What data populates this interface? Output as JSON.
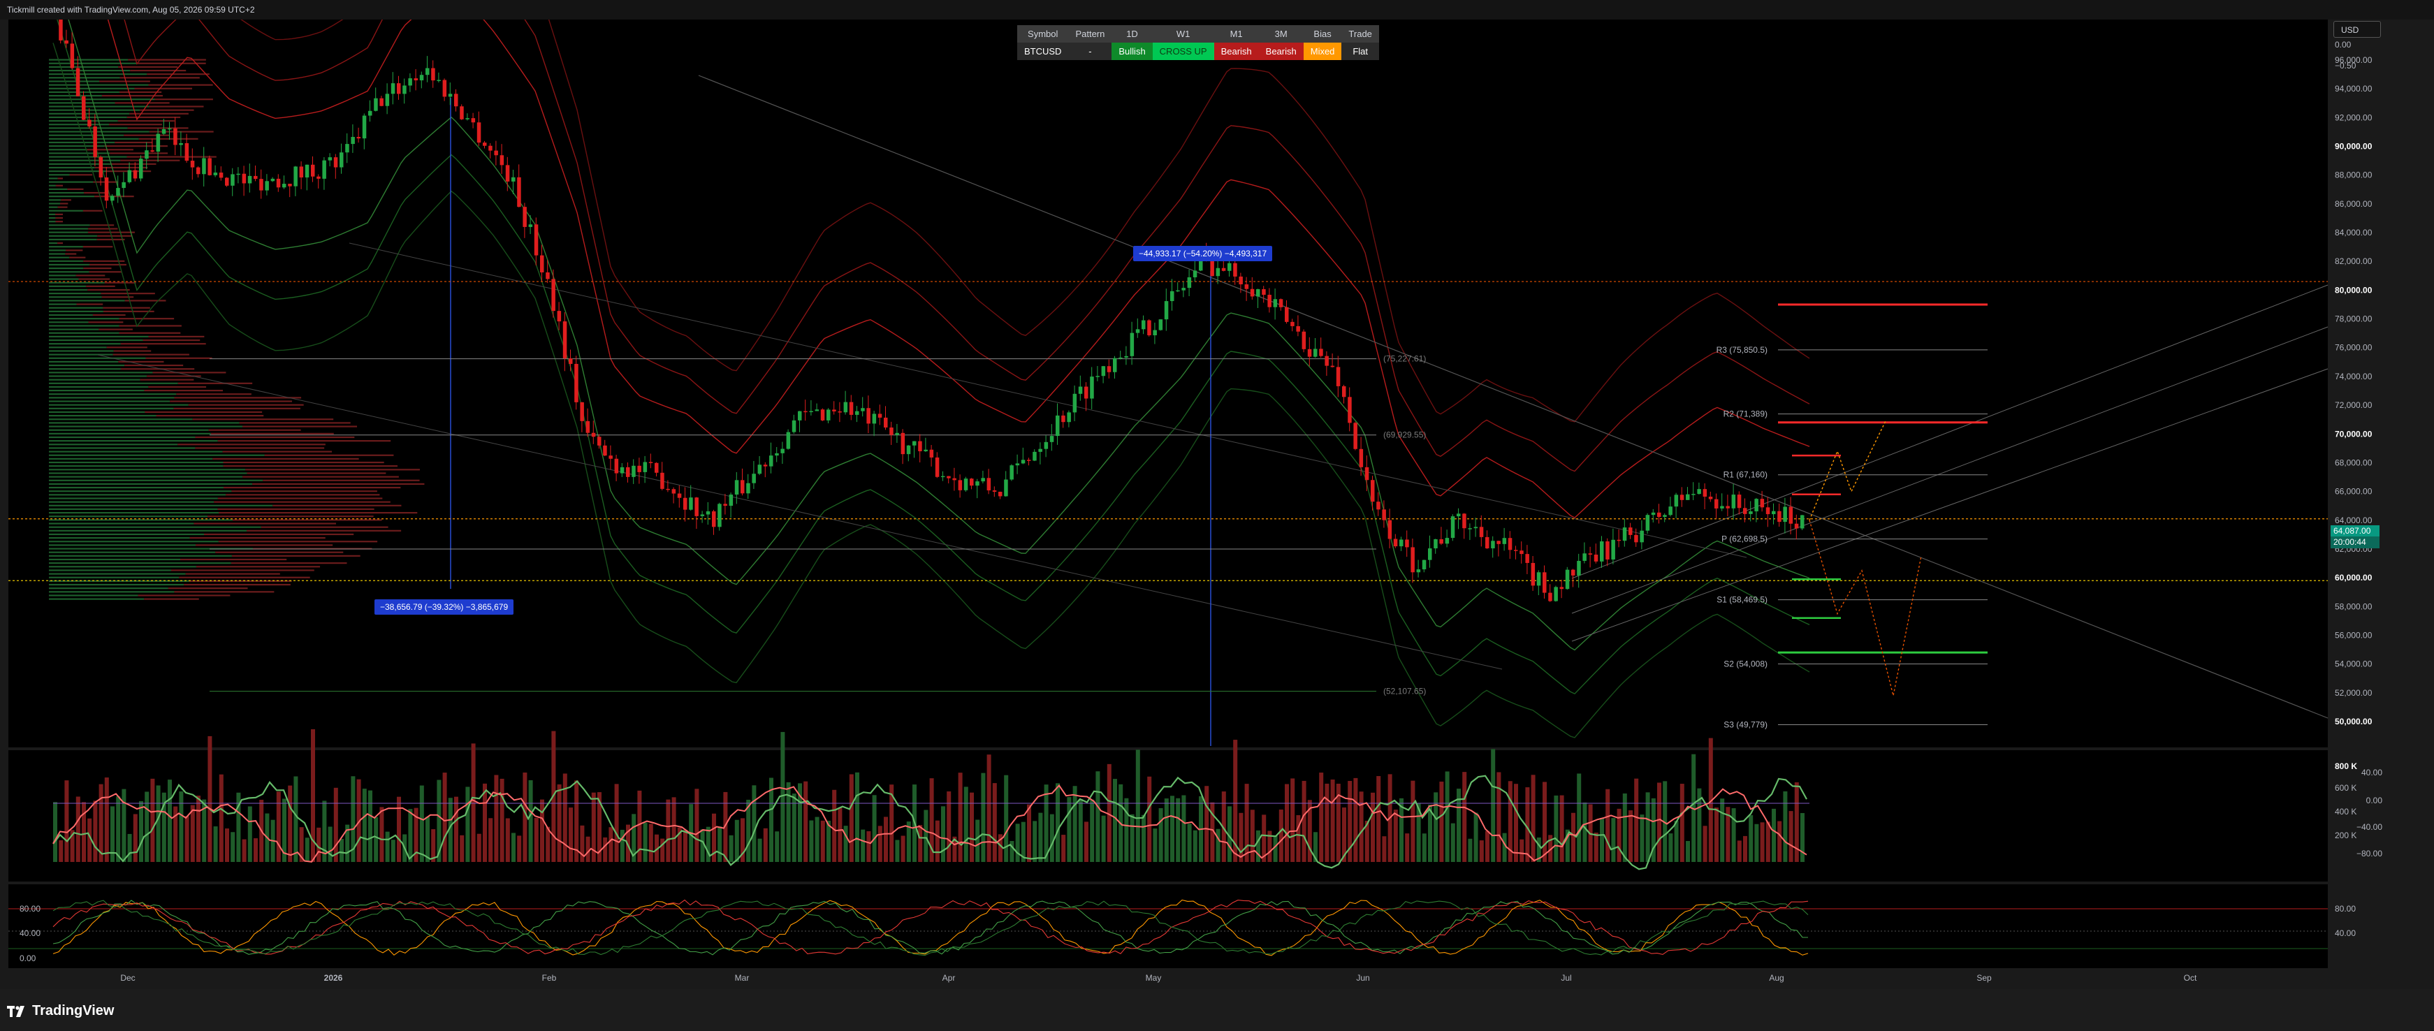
{
  "header": {
    "text": "Tickmill created with TradingView.com, Aug 05, 2026 09:59 UTC+2"
  },
  "footer": {
    "brand": "TradingView"
  },
  "currency": "USD",
  "signal_table": {
    "headers": [
      "Symbol",
      "Pattern",
      "1D",
      "W1",
      "M1",
      "3M",
      "Bias",
      "Trade"
    ],
    "values": [
      "BTCUSD",
      "-",
      "Bullish",
      "CROSS UP",
      "Bearish",
      "Bearish",
      "Mixed",
      "Flat"
    ],
    "value_colors": [
      "#2a2a2a",
      "#2a2a2a",
      "#0e8a2a",
      "#00c853",
      "#b71c1c",
      "#b71c1c",
      "#ff9800",
      "#2a2a2a"
    ],
    "value_text_colors": [
      "#ffffff",
      "#ffffff",
      "#ffffff",
      "#0e3b12",
      "#ffffff",
      "#ffffff",
      "#ffffff",
      "#ffffff"
    ]
  },
  "annotations": {
    "drop_measure": "−38,656.79 (−39.32%) −3,865,679",
    "rally_measure": "−44,933.17 (−54.20%) −4,493,317"
  },
  "price_axis": {
    "labels": [
      "0.00",
      "−0.50",
      "96,000.00",
      "94,000.00",
      "92,000.00",
      "90,000.00",
      "88,000.00",
      "86,000.00",
      "84,000.00",
      "82,000.00",
      "80,000.00",
      "78,000.00",
      "76,000.00",
      "74,000.00",
      "72,000.00",
      "70,000.00",
      "68,000.00",
      "66,000.00",
      "64,000.00",
      "62,000.00",
      "60,000.00",
      "58,000.00",
      "56,000.00",
      "54,000.00",
      "52,000.00",
      "50,000.00"
    ],
    "bold_labels": [
      "90,000.00",
      "80,000.00",
      "70,000.00",
      "60,000.00",
      "50,000.00"
    ],
    "current_price": "64,087.00",
    "countdown": "20:00:44"
  },
  "pivots": [
    {
      "label": "R3 (75,850.5)",
      "value": 75850.5
    },
    {
      "label": "R2 (71,389)",
      "value": 71389
    },
    {
      "label": "R1 (67,160)",
      "value": 67160
    },
    {
      "label": "P (62,698.5)",
      "value": 62698.5
    },
    {
      "label": "S1 (58,469.5)",
      "value": 58469.5
    },
    {
      "label": "S2 (54,008)",
      "value": 54008
    },
    {
      "label": "S3 (49,779)",
      "value": 49779
    }
  ],
  "fib_levels": [
    {
      "label": "(75,227.61)",
      "value": 75227.61
    },
    {
      "label": "(69,929.55)",
      "value": 69929.55
    },
    {
      "label": "(52,107.65)",
      "value": 52107.65
    }
  ],
  "time_axis": [
    "Dec",
    "2026",
    "Feb",
    "Mar",
    "Apr",
    "May",
    "Jun",
    "Jul",
    "Aug",
    "Sep",
    "Oct"
  ],
  "volume_axis": {
    "left": [
      "800 K",
      "600 K",
      "400 K",
      "200 K"
    ],
    "right": [
      "40.00",
      "0.00",
      "−40.00",
      "−80.00"
    ]
  },
  "stoch_axis": {
    "left": [
      "80.00",
      "40.00",
      "0.00"
    ],
    "right": [
      "80.00",
      "40.00"
    ]
  },
  "colors": {
    "bull": "#22a846",
    "bear": "#e01e1e",
    "bg": "#000000",
    "axis_text": "#b2b5be"
  },
  "chart_data": {
    "type": "candlestick",
    "symbol": "BTCUSD",
    "ylim": [
      49000,
      97000
    ],
    "close_path": [
      [
        "Nov 21",
        90500
      ],
      [
        "Nov 26",
        86000
      ],
      [
        "Dec 01",
        88000
      ],
      [
        "Dec 06",
        91000
      ],
      [
        "Dec 12",
        88500
      ],
      [
        "Dec 19",
        87500
      ],
      [
        "Dec 26",
        88000
      ],
      [
        "Jan 02",
        89000
      ],
      [
        "Jan 07",
        93000
      ],
      [
        "Jan 14",
        95500
      ],
      [
        "Jan 20",
        92000
      ],
      [
        "Jan 26",
        88000
      ],
      [
        "Feb 01",
        80000
      ],
      [
        "Feb 06",
        70000
      ],
      [
        "Feb 10",
        68000
      ],
      [
        "Feb 17",
        67000
      ],
      [
        "Feb 24",
        64000
      ],
      [
        "Mar 02",
        67000
      ],
      [
        "Mar 09",
        71000
      ],
      [
        "Mar 16",
        72000
      ],
      [
        "Mar 23",
        70000
      ],
      [
        "Apr 01",
        67000
      ],
      [
        "Apr 08",
        66000
      ],
      [
        "Apr 15",
        70000
      ],
      [
        "Apr 24",
        75000
      ],
      [
        "May 01",
        78000
      ],
      [
        "May 08",
        82000
      ],
      [
        "May 14",
        81000
      ],
      [
        "May 20",
        78000
      ],
      [
        "May 28",
        74000
      ],
      [
        "Jun 02",
        65000
      ],
      [
        "Jun 08",
        61000
      ],
      [
        "Jun 15",
        64000
      ],
      [
        "Jun 22",
        62000
      ],
      [
        "Jun 28",
        59000
      ],
      [
        "Jul 05",
        61500
      ],
      [
        "Jul 12",
        63500
      ],
      [
        "Jul 19",
        66000
      ],
      [
        "Jul 26",
        65000
      ],
      [
        "Aug 04",
        64087
      ]
    ]
  }
}
